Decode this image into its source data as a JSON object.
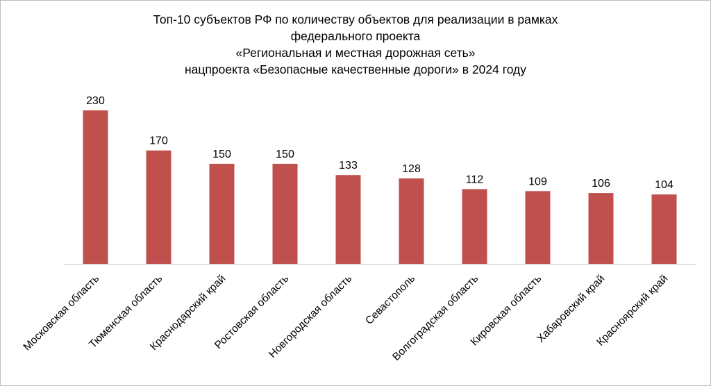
{
  "chart_data": {
    "type": "bar",
    "title_lines": [
      "Топ-10 субъектов РФ по количеству объектов для реализации в рамках",
      "федерального проекта",
      "«Региональная  и местная дорожная  сеть»",
      "нацпроекта «Безопасные качественные дороги» в 2024 году"
    ],
    "categories": [
      "Московская область",
      "Тюменская область",
      "Краснодарский край",
      "Ростовская область",
      "Новгородская область",
      "Севастополь",
      "Волгоградская область",
      "Кировская область",
      "Хабаровский край",
      "Красноярский край"
    ],
    "values": [
      230,
      170,
      150,
      150,
      133,
      128,
      112,
      109,
      106,
      104
    ],
    "value_labels": [
      "230",
      "170",
      "150",
      "150",
      "133",
      "128",
      "112",
      "109",
      "106",
      "104"
    ],
    "xlabel": "",
    "ylabel": "",
    "ylim": [
      0,
      230
    ],
    "grid": false,
    "legend": "none",
    "bar_color": "#c0504d",
    "axis_color": "#bfbfbf"
  }
}
